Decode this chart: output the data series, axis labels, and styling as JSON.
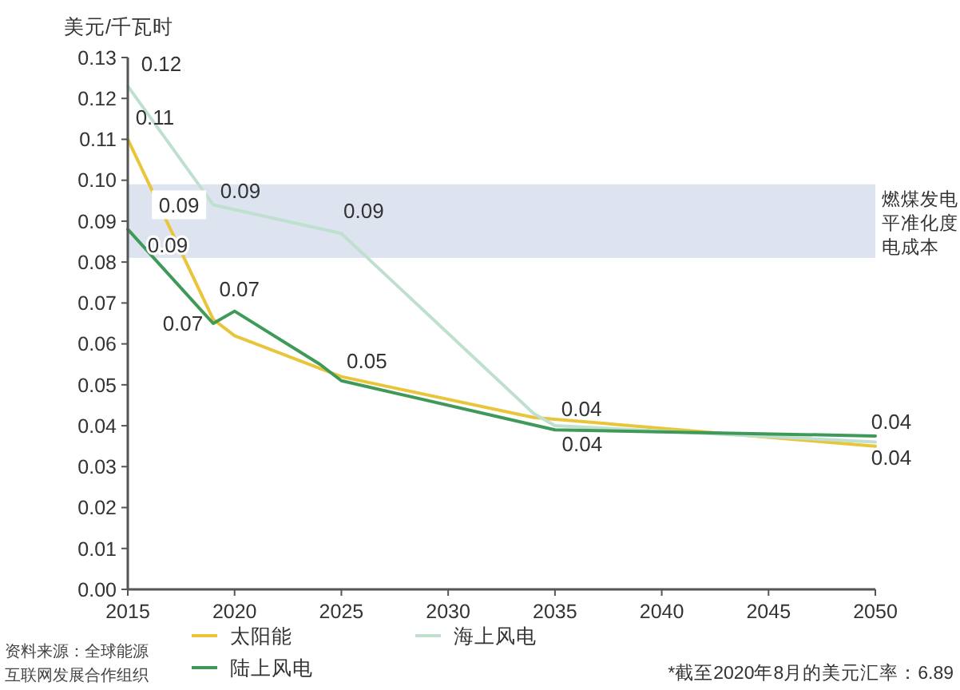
{
  "chart_data": {
    "type": "line",
    "ylabel": "美元/千瓦时",
    "xlim": [
      2015,
      2050
    ],
    "xticks": [
      2015,
      2020,
      2025,
      2030,
      2035,
      2040,
      2045,
      2050
    ],
    "ylim": [
      0,
      0.13
    ],
    "yticks": [
      {
        "value": 0,
        "label": "0.00"
      },
      {
        "value": 0.01,
        "label": "0.01"
      },
      {
        "value": 0.02,
        "label": "0.02"
      },
      {
        "value": 0.03,
        "label": "0.03"
      },
      {
        "value": 0.04,
        "label": "0.04"
      },
      {
        "value": 0.05,
        "label": "0.05"
      },
      {
        "value": 0.06,
        "label": "0.06"
      },
      {
        "value": 0.07,
        "label": "0.07"
      },
      {
        "value": 0.08,
        "label": "0.08"
      },
      {
        "value": 0.09,
        "label": "0.09"
      },
      {
        "value": 0.1,
        "label": "0.10"
      },
      {
        "value": 0.11,
        "label": "0.11"
      },
      {
        "value": 0.12,
        "label": "0.12"
      },
      {
        "value": 0.13,
        "label": "0.13"
      }
    ],
    "series": [
      {
        "name": "太阳能",
        "color": "#e8c53a",
        "x": [
          2015,
          2019,
          2020,
          2025,
          2034,
          2050
        ],
        "values": [
          0.11,
          0.066,
          0.062,
          0.052,
          0.042,
          0.035
        ]
      },
      {
        "name": "海上风电",
        "color": "#bfe0cf",
        "x": [
          2015,
          2019,
          2025,
          2034,
          2035,
          2050
        ],
        "values": [
          0.123,
          0.094,
          0.087,
          0.043,
          0.04,
          0.036
        ]
      },
      {
        "name": "陆上风电",
        "color": "#3f9a5a",
        "x": [
          2015,
          2019,
          2020,
          2024,
          2025,
          2035,
          2050
        ],
        "values": [
          0.088,
          0.065,
          0.068,
          0.055,
          0.051,
          0.039,
          0.0375
        ]
      }
    ],
    "bands": [
      {
        "axis": "y",
        "from": 0.081,
        "to": 0.099,
        "label": "燃煤发电平准化度电成本",
        "color": "#dde4ef"
      }
    ],
    "legend": "bottom",
    "line_style": "solid",
    "marker": "none",
    "grid": false,
    "annotations": [
      {
        "text": "0.12",
        "x": 2015,
        "y": 0.123
      },
      {
        "text": "0.11",
        "x": 2015,
        "y": 0.11
      },
      {
        "text": "0.09",
        "x": 2017.4,
        "y": 0.094
      },
      {
        "text": "0.09",
        "x": 2015,
        "y": 0.088
      },
      {
        "text": "0.09",
        "x": 2019,
        "y": 0.094
      },
      {
        "text": "0.09",
        "x": 2025,
        "y": 0.087
      },
      {
        "text": "0.07",
        "x": 2020,
        "y": 0.068
      },
      {
        "text": "0.07",
        "x": 2019,
        "y": 0.065
      },
      {
        "text": "0.05",
        "x": 2025,
        "y": 0.052
      },
      {
        "text": "0.04",
        "x": 2034,
        "y": 0.043
      },
      {
        "text": "0.04",
        "x": 2035,
        "y": 0.039
      },
      {
        "text": "0.04",
        "x": 2050,
        "y": 0.0375
      },
      {
        "text": "0.04",
        "x": 2050,
        "y": 0.035
      },
      "资料来源：全球能源互联网发展合作组织",
      "*截至2020年8月的美元汇率：6.89"
    ]
  }
}
